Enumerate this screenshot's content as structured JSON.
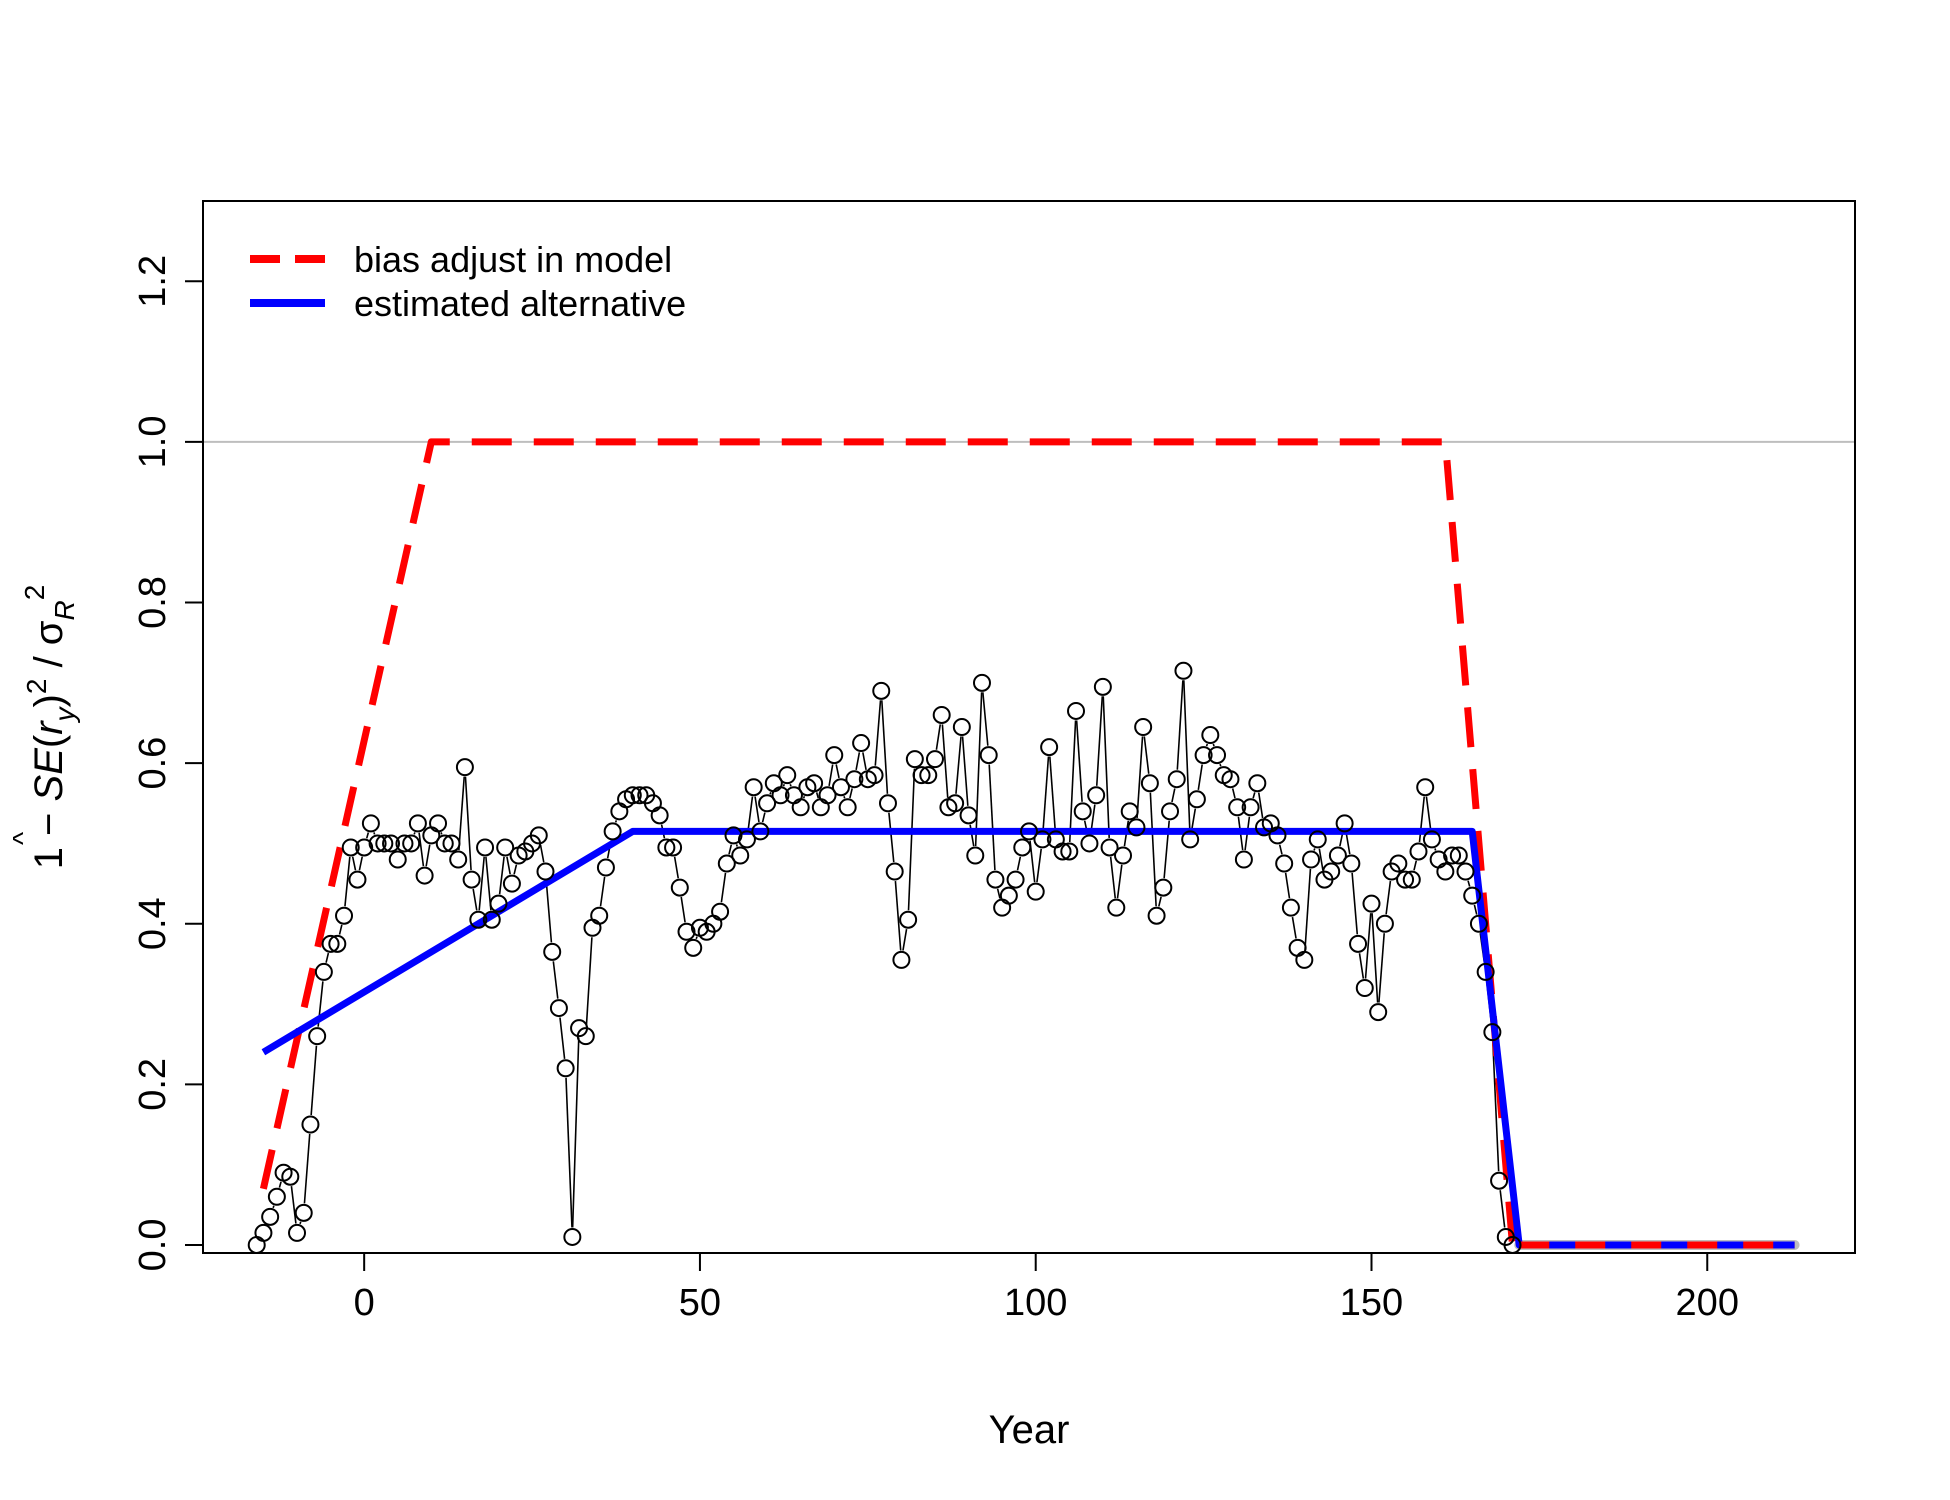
{
  "chart_data": {
    "type": "line",
    "title": "",
    "xlabel": "Year",
    "ylabel": "1 − SE(r̂y)² / σR²",
    "ylabel_parts": {
      "lead": "1 − ",
      "se": "SE",
      "r": "r",
      "hat": "^",
      "y": "y",
      "sigma": "σ",
      "R": "R",
      "two": "2"
    },
    "xlim": [
      -24,
      222
    ],
    "ylim": [
      -0.01,
      1.3
    ],
    "xticks": [
      0,
      50,
      100,
      150,
      200
    ],
    "yticks": [
      0.0,
      0.2,
      0.4,
      0.6,
      0.8,
      1.0,
      1.2
    ],
    "xtick_labels": [
      "0",
      "50",
      "100",
      "150",
      "200"
    ],
    "ytick_labels": [
      "0.0",
      "0.2",
      "0.4",
      "0.6",
      "0.8",
      "1.0",
      "1.2"
    ],
    "reference_line_y": 1.0,
    "legend_position": "top-left",
    "colors": {
      "bias": "#ff0000",
      "alternative": "#0000ff",
      "points": "#000000",
      "reference": "#bebebe",
      "tail": "#bebebe"
    },
    "series": [
      {
        "name": "bias adjust in model",
        "style": "dashed",
        "x": [
          -15,
          10,
          161,
          171,
          213
        ],
        "y": [
          0.07,
          1.0,
          1.0,
          0.0,
          0.0
        ]
      },
      {
        "name": "estimated alternative",
        "style": "solid",
        "x": [
          -15,
          40,
          165,
          172,
          213
        ],
        "y": [
          0.24,
          0.515,
          0.515,
          0.0,
          0.0
        ]
      }
    ],
    "observed": {
      "x_start": -16,
      "y": [
        0.0,
        0.015,
        0.035,
        0.06,
        0.09,
        0.085,
        0.015,
        0.04,
        0.15,
        0.26,
        0.34,
        0.375,
        0.375,
        0.41,
        0.495,
        0.455,
        0.495,
        0.525,
        0.5,
        0.5,
        0.5,
        0.48,
        0.5,
        0.5,
        0.525,
        0.46,
        0.51,
        0.525,
        0.5,
        0.5,
        0.48,
        0.595,
        0.455,
        0.405,
        0.495,
        0.405,
        0.425,
        0.495,
        0.45,
        0.485,
        0.49,
        0.5,
        0.51,
        0.465,
        0.365,
        0.295,
        0.22,
        0.01,
        0.27,
        0.26,
        0.395,
        0.41,
        0.47,
        0.515,
        0.54,
        0.555,
        0.56,
        0.56,
        0.56,
        0.55,
        0.535,
        0.495,
        0.495,
        0.445,
        0.39,
        0.37,
        0.395,
        0.39,
        0.4,
        0.415,
        0.475,
        0.51,
        0.485,
        0.505,
        0.57,
        0.515,
        0.55,
        0.575,
        0.56,
        0.585,
        0.56,
        0.545,
        0.57,
        0.575,
        0.545,
        0.56,
        0.61,
        0.57,
        0.545,
        0.58,
        0.625,
        0.58,
        0.585,
        0.69,
        0.55,
        0.465,
        0.355,
        0.405,
        0.605,
        0.585,
        0.585,
        0.605,
        0.66,
        0.545,
        0.55,
        0.645,
        0.535,
        0.485,
        0.7,
        0.61,
        0.455,
        0.42,
        0.435,
        0.455,
        0.495,
        0.515,
        0.44,
        0.505,
        0.62,
        0.505,
        0.49,
        0.49,
        0.665,
        0.54,
        0.5,
        0.56,
        0.695,
        0.495,
        0.42,
        0.485,
        0.54,
        0.52,
        0.645,
        0.575,
        0.41,
        0.445,
        0.54,
        0.58,
        0.715,
        0.505,
        0.555,
        0.61,
        0.635,
        0.61,
        0.585,
        0.58,
        0.545,
        0.48,
        0.545,
        0.575,
        0.52,
        0.525,
        0.51,
        0.475,
        0.42,
        0.37,
        0.355,
        0.48,
        0.505,
        0.455,
        0.465,
        0.485,
        0.525,
        0.475,
        0.375,
        0.32,
        0.425,
        0.29,
        0.4,
        0.465,
        0.475,
        0.455,
        0.455,
        0.49,
        0.57,
        0.505,
        0.48,
        0.465,
        0.485,
        0.485,
        0.465,
        0.435,
        0.4,
        0.34,
        0.265,
        0.08,
        0.01,
        0.0
      ]
    }
  },
  "legend": {
    "items": [
      {
        "label": "bias adjust in model"
      },
      {
        "label": "estimated alternative"
      }
    ]
  }
}
